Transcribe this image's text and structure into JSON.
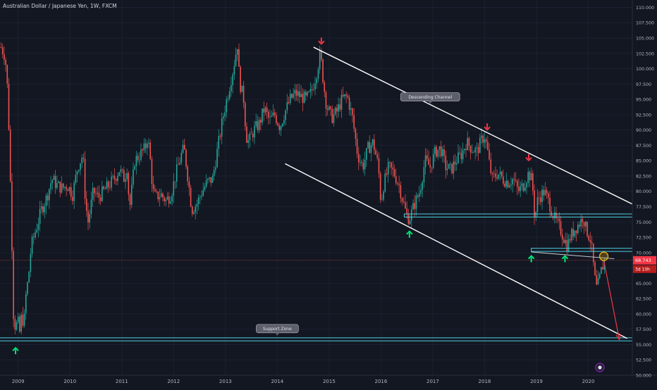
{
  "header": {
    "symbol_title": "Australian Dollar / Japanese Yen, 1W, FXCM"
  },
  "chart_data": {
    "type": "candlestick",
    "x_axis_labels": [
      "2009",
      "2010",
      "2011",
      "2012",
      "2013",
      "2014",
      "2015",
      "2016",
      "2017",
      "2018",
      "2019",
      "2020"
    ],
    "x_range": [
      2008.7,
      2020.9
    ],
    "y_range": [
      50.0,
      111.2
    ],
    "y_ticks": [
      "50.000",
      "52.500",
      "55.000",
      "57.500",
      "60.000",
      "62.500",
      "65.000",
      "67.500",
      "70.000",
      "72.500",
      "75.000",
      "77.500",
      "80.000",
      "82.500",
      "85.000",
      "87.500",
      "90.000",
      "92.500",
      "95.000",
      "97.500",
      "100.000",
      "102.500",
      "105.000",
      "107.500",
      "110.000"
    ],
    "current_price": {
      "value": 68.743,
      "label": "68.743",
      "countdown": "3d 10h"
    },
    "price_path": [
      [
        2008.72,
        103.5
      ],
      [
        2008.8,
        102
      ],
      [
        2008.85,
        96
      ],
      [
        2008.88,
        88
      ],
      [
        2008.92,
        75
      ],
      [
        2008.96,
        60
      ],
      [
        2009.0,
        57.5
      ],
      [
        2009.04,
        59
      ],
      [
        2009.08,
        57
      ],
      [
        2009.12,
        60
      ],
      [
        2009.16,
        58
      ],
      [
        2009.2,
        63
      ],
      [
        2009.25,
        66
      ],
      [
        2009.3,
        71
      ],
      [
        2009.4,
        74
      ],
      [
        2009.5,
        77
      ],
      [
        2009.6,
        79
      ],
      [
        2009.7,
        82
      ],
      [
        2009.8,
        81
      ],
      [
        2009.9,
        80.5
      ],
      [
        2010.0,
        81
      ],
      [
        2010.1,
        79.5
      ],
      [
        2010.2,
        84
      ],
      [
        2010.3,
        86
      ],
      [
        2010.35,
        78
      ],
      [
        2010.4,
        75
      ],
      [
        2010.5,
        80
      ],
      [
        2010.6,
        79
      ],
      [
        2010.7,
        80
      ],
      [
        2010.8,
        81
      ],
      [
        2010.9,
        82
      ],
      [
        2011.0,
        83.5
      ],
      [
        2011.1,
        82
      ],
      [
        2011.15,
        84
      ],
      [
        2011.2,
        77
      ],
      [
        2011.3,
        85
      ],
      [
        2011.4,
        86
      ],
      [
        2011.5,
        87
      ],
      [
        2011.55,
        89
      ],
      [
        2011.6,
        85
      ],
      [
        2011.65,
        80
      ],
      [
        2011.7,
        79
      ],
      [
        2011.8,
        79.5
      ],
      [
        2011.9,
        78.5
      ],
      [
        2012.0,
        79.5
      ],
      [
        2012.1,
        83
      ],
      [
        2012.2,
        86
      ],
      [
        2012.25,
        87
      ],
      [
        2012.3,
        84
      ],
      [
        2012.4,
        77
      ],
      [
        2012.5,
        78
      ],
      [
        2012.6,
        80
      ],
      [
        2012.7,
        81.5
      ],
      [
        2012.8,
        82
      ],
      [
        2012.9,
        87
      ],
      [
        2013.0,
        92
      ],
      [
        2013.1,
        96
      ],
      [
        2013.2,
        100
      ],
      [
        2013.28,
        104
      ],
      [
        2013.32,
        98
      ],
      [
        2013.4,
        95
      ],
      [
        2013.45,
        89
      ],
      [
        2013.5,
        88
      ],
      [
        2013.6,
        90
      ],
      [
        2013.7,
        91
      ],
      [
        2013.8,
        93.5
      ],
      [
        2013.9,
        91.5
      ],
      [
        2014.0,
        92.5
      ],
      [
        2014.1,
        90.5
      ],
      [
        2014.2,
        93
      ],
      [
        2014.3,
        95
      ],
      [
        2014.4,
        96
      ],
      [
        2014.5,
        95.5
      ],
      [
        2014.6,
        95
      ],
      [
        2014.7,
        96
      ],
      [
        2014.8,
        99
      ],
      [
        2014.88,
        102.5
      ],
      [
        2014.95,
        97
      ],
      [
        2015.0,
        94
      ],
      [
        2015.1,
        92
      ],
      [
        2015.2,
        93
      ],
      [
        2015.3,
        95
      ],
      [
        2015.4,
        95.5
      ],
      [
        2015.5,
        92
      ],
      [
        2015.6,
        86
      ],
      [
        2015.7,
        84
      ],
      [
        2015.8,
        87
      ],
      [
        2015.9,
        88
      ],
      [
        2016.0,
        84
      ],
      [
        2016.05,
        78
      ],
      [
        2016.1,
        81
      ],
      [
        2016.2,
        84
      ],
      [
        2016.3,
        83
      ],
      [
        2016.4,
        81
      ],
      [
        2016.5,
        77.5
      ],
      [
        2016.55,
        76
      ],
      [
        2016.6,
        75.5
      ],
      [
        2016.7,
        78
      ],
      [
        2016.8,
        80
      ],
      [
        2016.9,
        85
      ],
      [
        2017.0,
        84
      ],
      [
        2017.1,
        86.5
      ],
      [
        2017.2,
        87
      ],
      [
        2017.3,
        84
      ],
      [
        2017.4,
        83.5
      ],
      [
        2017.5,
        85
      ],
      [
        2017.6,
        86
      ],
      [
        2017.7,
        88
      ],
      [
        2017.8,
        87
      ],
      [
        2017.9,
        86.5
      ],
      [
        2018.0,
        88.5
      ],
      [
        2018.05,
        89
      ],
      [
        2018.1,
        87
      ],
      [
        2018.15,
        84
      ],
      [
        2018.2,
        82
      ],
      [
        2018.3,
        83
      ],
      [
        2018.4,
        82
      ],
      [
        2018.5,
        81.5
      ],
      [
        2018.6,
        82
      ],
      [
        2018.7,
        80
      ],
      [
        2018.8,
        81
      ],
      [
        2018.9,
        83
      ],
      [
        2018.95,
        82
      ],
      [
        2019.0,
        79
      ],
      [
        2019.02,
        74
      ],
      [
        2019.05,
        78
      ],
      [
        2019.1,
        79
      ],
      [
        2019.2,
        80
      ],
      [
        2019.3,
        78
      ],
      [
        2019.4,
        75.5
      ],
      [
        2019.5,
        74
      ],
      [
        2019.6,
        72
      ],
      [
        2019.65,
        71
      ],
      [
        2019.7,
        72.5
      ],
      [
        2019.8,
        74
      ],
      [
        2019.9,
        75
      ],
      [
        2019.95,
        76
      ],
      [
        2020.0,
        74
      ],
      [
        2020.05,
        73
      ],
      [
        2020.1,
        72
      ],
      [
        2020.15,
        68
      ],
      [
        2020.2,
        64
      ],
      [
        2020.25,
        65
      ],
      [
        2020.3,
        67
      ],
      [
        2020.36,
        68.7
      ]
    ],
    "price_line": 68.743,
    "channel_upper": [
      [
        2014.75,
        103.5
      ],
      [
        2021.0,
        77.5
      ]
    ],
    "channel_lower": [
      [
        2014.2,
        84.5
      ],
      [
        2020.8,
        56.0
      ]
    ],
    "horizontal_zones": [
      {
        "x_from": 2016.5,
        "x_to": 2021.0,
        "top": 76.3,
        "bottom": 75.8
      },
      {
        "x_from": 2018.95,
        "x_to": 2021.0,
        "top": 70.7,
        "bottom": 70.2
      },
      {
        "x_from": 2008.6,
        "x_to": 2021.0,
        "top": 56.1,
        "bottom": 55.6
      }
    ],
    "breakdown_line": [
      [
        2018.95,
        70.1
      ],
      [
        2020.55,
        69.0
      ]
    ],
    "projection_arrow": [
      [
        2020.35,
        68.7
      ],
      [
        2020.65,
        55.8
      ]
    ],
    "breakout_circle": [
      2020.35,
      69.4
    ],
    "arrows_down": [
      [
        2014.9,
        104.5
      ],
      [
        2018.1,
        90.5
      ],
      [
        2018.9,
        85.5
      ]
    ],
    "arrows_up": [
      [
        2009.0,
        54.0
      ],
      [
        2016.6,
        73.0
      ],
      [
        2018.95,
        69.0
      ],
      [
        2019.6,
        69.0
      ]
    ],
    "annotations": [
      {
        "text": "Descending Channel",
        "x": 2017.0,
        "y": 95.4,
        "pointer": "down"
      },
      {
        "text": "Support Zone",
        "x": 2014.05,
        "y": 57.6,
        "pointer": "down"
      }
    ]
  }
}
